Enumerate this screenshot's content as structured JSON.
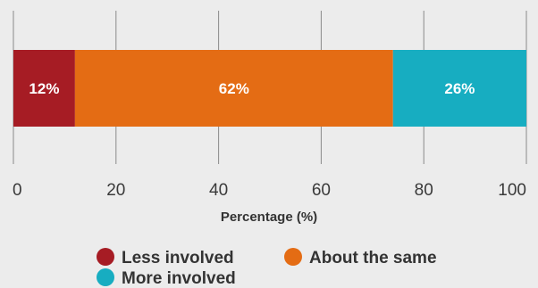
{
  "chart_data": {
    "type": "bar",
    "orientation": "horizontal-stacked",
    "xlabel": "Percentage (%)",
    "xlim": [
      0,
      100
    ],
    "xticks": [
      "0",
      "20",
      "40",
      "60",
      "80",
      "100"
    ],
    "grid": true,
    "legend_position": "bottom",
    "series": [
      {
        "name": "Less involved",
        "value": 12,
        "label": "12%",
        "color": "#a61c24"
      },
      {
        "name": "About the same",
        "value": 62,
        "label": "62%",
        "color": "#e46c14"
      },
      {
        "name": "More involved",
        "value": 26,
        "label": "26%",
        "color": "#17adc1"
      }
    ]
  }
}
